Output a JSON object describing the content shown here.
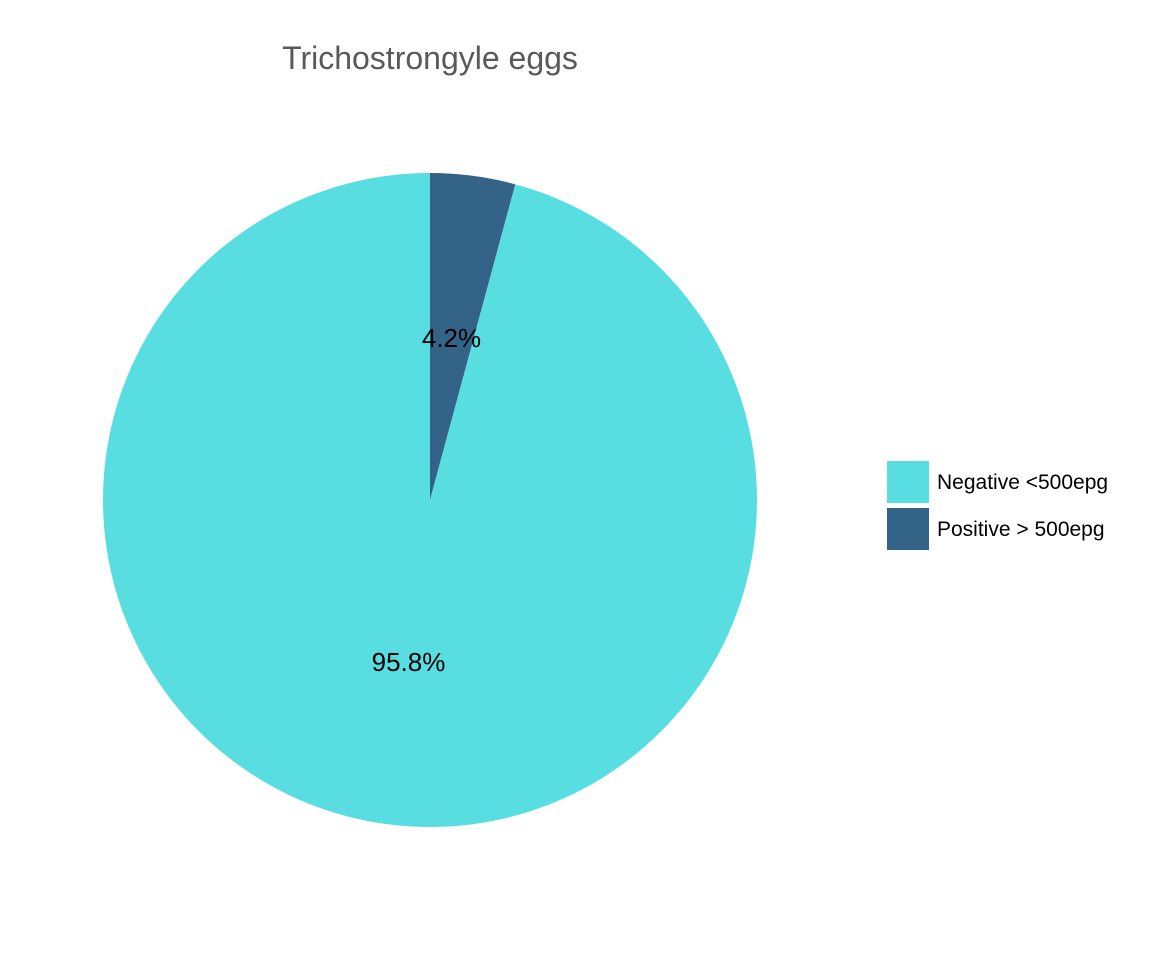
{
  "chart_data": {
    "type": "pie",
    "title": "Trichostrongyle eggs",
    "slices": [
      {
        "label": "Negative <500epg",
        "value": 95.8,
        "display": "95.8%",
        "color": "#58dde0"
      },
      {
        "label": "Positive > 500epg",
        "value": 4.2,
        "display": "4.2%",
        "color": "#336488"
      }
    ],
    "start_angle_deg": 0,
    "direction": "clockwise",
    "legend_position": "right"
  }
}
